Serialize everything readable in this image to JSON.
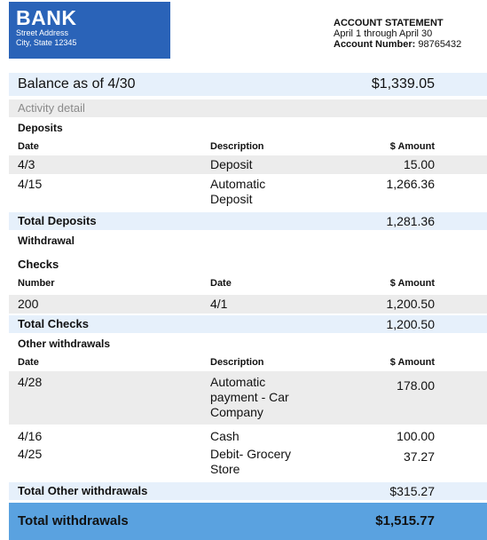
{
  "bank": {
    "name": "BANK",
    "street": "Street Address",
    "city": "City, State 12345"
  },
  "statement": {
    "title": "ACCOUNT STATEMENT",
    "period": "April 1 through April 30",
    "account_label": "Account Number:",
    "account_number": "98765432"
  },
  "balance": {
    "label": "Balance as of 4/30",
    "amount": "$1,339.05"
  },
  "activity_label": "Activity detail",
  "deposits": {
    "title": "Deposits",
    "headers": {
      "date": "Date",
      "description": "Description",
      "amount": "$ Amount"
    },
    "rows": [
      {
        "date": "4/3",
        "description": "Deposit",
        "amount": "15.00"
      },
      {
        "date": "4/15",
        "description": "Automatic Deposit",
        "amount": "1,266.36"
      }
    ],
    "total_label": "Total Deposits",
    "total": "1,281.36"
  },
  "withdrawal_label": "Withdrawal",
  "checks": {
    "title": "Checks",
    "headers": {
      "number": "Number",
      "date": "Date",
      "amount": "$ Amount"
    },
    "rows": [
      {
        "number": "200",
        "date": "4/1",
        "amount": "1,200.50"
      }
    ],
    "total_label": "Total Checks",
    "total": "1,200.50"
  },
  "other_withdrawals": {
    "title": "Other withdrawals",
    "headers": {
      "date": "Date",
      "description": "Description",
      "amount": "$ Amount"
    },
    "rows": [
      {
        "date": "4/28",
        "description": "Automatic payment - Car Company",
        "amount": "178.00"
      },
      {
        "date": "4/16",
        "description": "Cash",
        "amount": "100.00"
      },
      {
        "date": "4/25",
        "description": "Debit- Grocery Store",
        "amount": "37.27"
      }
    ],
    "total_label": "Total Other withdrawals",
    "total": "$315.27"
  },
  "grand_total": {
    "label": "Total withdrawals",
    "amount": "$1,515.77"
  },
  "colors": {
    "brand": "#2a63b8",
    "band_light": "#e6f0fb",
    "band_gray": "#ececec",
    "grand_total_band": "#5aa2e0"
  }
}
